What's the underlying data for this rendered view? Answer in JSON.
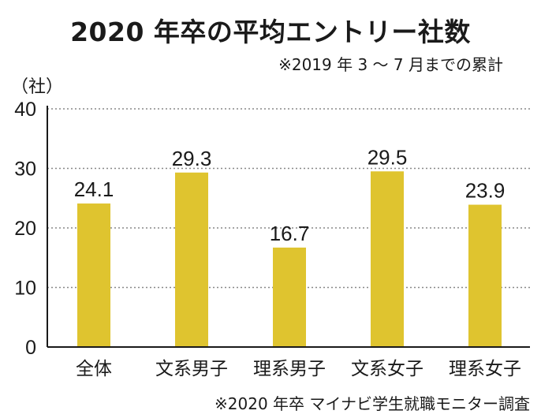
{
  "header": {
    "title": "2020 年卒の平均エントリー社数",
    "subtitle": "※2019 年 3 〜 7 月までの累計",
    "unit": "（社）"
  },
  "footer": {
    "source": "※2020 年卒 マイナビ学生就職モニター調査"
  },
  "colors": {
    "bar": "#dfc42f",
    "grid": "#888888",
    "axis": "#1a1a1a"
  },
  "chart_data": {
    "type": "bar",
    "title": "2020 年卒の平均エントリー社数",
    "subtitle": "※2019 年 3 〜 7 月までの累計",
    "ylabel": "（社）",
    "categories": [
      "全体",
      "文系男子",
      "理系男子",
      "文系女子",
      "理系女子"
    ],
    "values": [
      24.1,
      29.3,
      16.7,
      29.5,
      23.9
    ],
    "ylim": [
      0,
      40
    ],
    "yticks": [
      "0",
      "10",
      "20",
      "30",
      "40"
    ],
    "grid": true,
    "legend": "none"
  }
}
